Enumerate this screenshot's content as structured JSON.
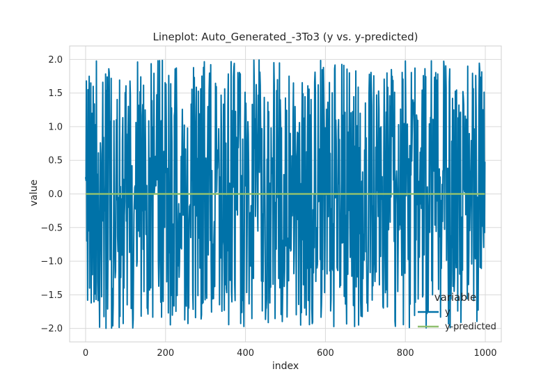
{
  "chart_data": {
    "type": "line",
    "title": "Lineplot: Auto_Generated_-3To3 (y vs. y-predicted)",
    "xlabel": "index",
    "ylabel": "value",
    "xlim": [
      -40,
      1040
    ],
    "ylim": [
      -2.2,
      2.2
    ],
    "x_ticks": [
      0,
      200,
      400,
      600,
      800,
      1000
    ],
    "y_ticks": [
      -2.0,
      -1.5,
      -1.0,
      -0.5,
      0.0,
      0.5,
      1.0,
      1.5,
      2.0
    ],
    "x_tick_labels": [
      "0",
      "200",
      "400",
      "600",
      "800",
      "1000"
    ],
    "y_tick_labels": [
      "−2.0",
      "−1.5",
      "−1.0",
      "−0.5",
      "0.0",
      "0.5",
      "1.0",
      "1.5",
      "2.0"
    ],
    "grid": true,
    "background": "#ffffff",
    "legend": {
      "title": "variable",
      "position": "lower-right"
    },
    "x": {
      "start": 0,
      "end": 999,
      "count": 1000,
      "note": "index 0..999 for both series"
    },
    "series": [
      {
        "name": "y",
        "color": "#0072a8",
        "description": "noisy signal uniformly spread in [-2, 2]",
        "sample_values": [
          0.25,
          0.2,
          1.68,
          -0.7,
          0.1,
          -1.58,
          1.55,
          -0.55,
          0.9,
          1.75,
          -1.4,
          0.6,
          -0.3,
          1.65,
          -1.62,
          0.4,
          1.2,
          -1.2,
          0.0,
          1.6
        ]
      },
      {
        "name": "y-predicted",
        "color": "#8fbf6f",
        "values_constant": 0.0
      }
    ]
  }
}
